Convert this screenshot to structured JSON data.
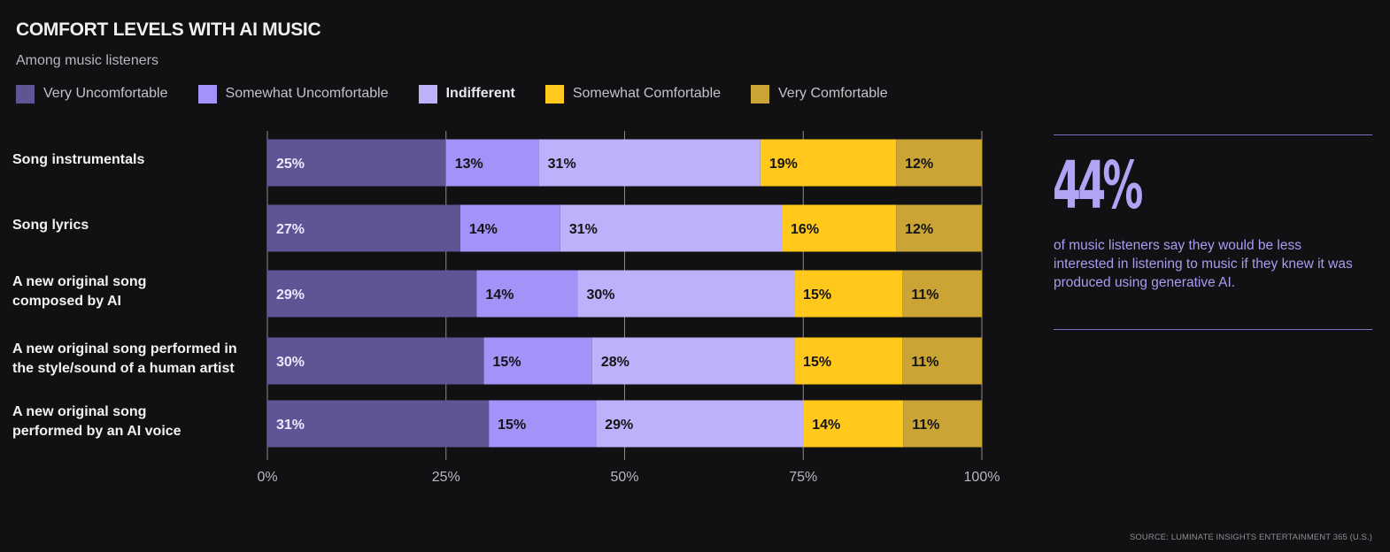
{
  "chart_data": {
    "type": "bar",
    "orientation": "horizontal-stacked-100",
    "title": "COMFORT LEVELS WITH AI MUSIC",
    "subtitle": "Among music listeners",
    "categories": [
      "Song instrumentals",
      "Song lyrics",
      "A new original song composed by AI",
      "A new original song performed in the style/sound of a human artist",
      "A new original song performed by an AI voice"
    ],
    "category_lines": [
      [
        "Song instrumentals"
      ],
      [
        "Song lyrics"
      ],
      [
        "A new original song",
        "composed by AI"
      ],
      [
        "A new original song performed in",
        "the style/sound of a human artist"
      ],
      [
        "A new original song",
        "performed by an AI voice"
      ]
    ],
    "series": [
      {
        "name": "Very Uncomfortable",
        "color": "#615495",
        "label_color": "#ece8ff",
        "values": [
          25,
          27,
          29,
          30,
          31
        ]
      },
      {
        "name": "Somewhat Uncomfortable",
        "color": "#a392f8",
        "label_color": "#141414",
        "values": [
          13,
          14,
          14,
          15,
          15
        ]
      },
      {
        "name": "Indifferent",
        "color": "#bcb2fb",
        "label_color": "#141414",
        "values": [
          31,
          31,
          30,
          28,
          29
        ]
      },
      {
        "name": "Somewhat Comfortable",
        "color": "#ffc81a",
        "label_color": "#141414",
        "values": [
          19,
          16,
          15,
          15,
          14
        ]
      },
      {
        "name": "Very Comfortable",
        "color": "#cba436",
        "label_color": "#141414",
        "values": [
          12,
          12,
          11,
          11,
          11
        ]
      }
    ],
    "xlim": [
      0,
      100
    ],
    "xticks": [
      0,
      25,
      50,
      75,
      100
    ],
    "xtick_labels": [
      "0%",
      "25%",
      "50%",
      "75%",
      "100%"
    ],
    "grid": true,
    "value_suffix": "%"
  },
  "legend_emphasis": "Indifferent",
  "callout": {
    "stat": "44%",
    "text": "of music listeners say they would be less interested in listening to music if they knew it was produced using generative AI."
  },
  "source": "SOURCE: LUMINATE INSIGHTS ENTERTAINMENT 365 (U.S.)"
}
